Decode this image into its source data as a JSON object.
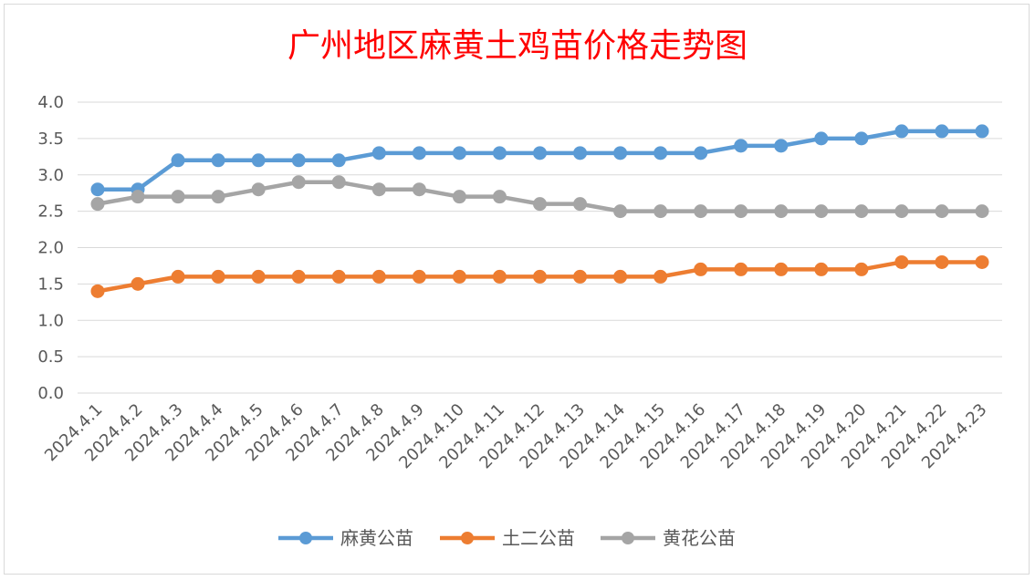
{
  "chart_data": {
    "type": "line",
    "title": "广州地区麻黄土鸡苗价格走势图",
    "xlabel": "",
    "ylabel": "",
    "ylim": [
      0,
      4
    ],
    "yticks": [
      "0.0",
      "0.5",
      "1.0",
      "1.5",
      "2.0",
      "2.5",
      "3.0",
      "3.5",
      "4.0"
    ],
    "grid": true,
    "legend_position": "bottom",
    "categories": [
      "2024.4.1",
      "2024.4.2",
      "2024.4.3",
      "2024.4.4",
      "2024.4.5",
      "2024.4.6",
      "2024.4.7",
      "2024.4.8",
      "2024.4.9",
      "2024.4.10",
      "2024.4.11",
      "2024.4.12",
      "2024.4.13",
      "2024.4.14",
      "2024.4.15",
      "2024.4.16",
      "2024.4.17",
      "2024.4.18",
      "2024.4.19",
      "2024.4.20",
      "2024.4.21",
      "2024.4.22",
      "2024.4.23"
    ],
    "series": [
      {
        "name": "麻黄公苗",
        "color": "#5b9bd5",
        "values": [
          2.8,
          2.8,
          3.2,
          3.2,
          3.2,
          3.2,
          3.2,
          3.3,
          3.3,
          3.3,
          3.3,
          3.3,
          3.3,
          3.3,
          3.3,
          3.3,
          3.4,
          3.4,
          3.5,
          3.5,
          3.6,
          3.6,
          3.6
        ]
      },
      {
        "name": "土二公苗",
        "color": "#ed7d31",
        "values": [
          1.4,
          1.5,
          1.6,
          1.6,
          1.6,
          1.6,
          1.6,
          1.6,
          1.6,
          1.6,
          1.6,
          1.6,
          1.6,
          1.6,
          1.6,
          1.7,
          1.7,
          1.7,
          1.7,
          1.7,
          1.8,
          1.8,
          1.8
        ]
      },
      {
        "name": "黄花公苗",
        "color": "#a5a5a5",
        "values": [
          2.6,
          2.7,
          2.7,
          2.7,
          2.8,
          2.9,
          2.9,
          2.8,
          2.8,
          2.7,
          2.7,
          2.6,
          2.6,
          2.5,
          2.5,
          2.5,
          2.5,
          2.5,
          2.5,
          2.5,
          2.5,
          2.5,
          2.5
        ]
      }
    ]
  }
}
